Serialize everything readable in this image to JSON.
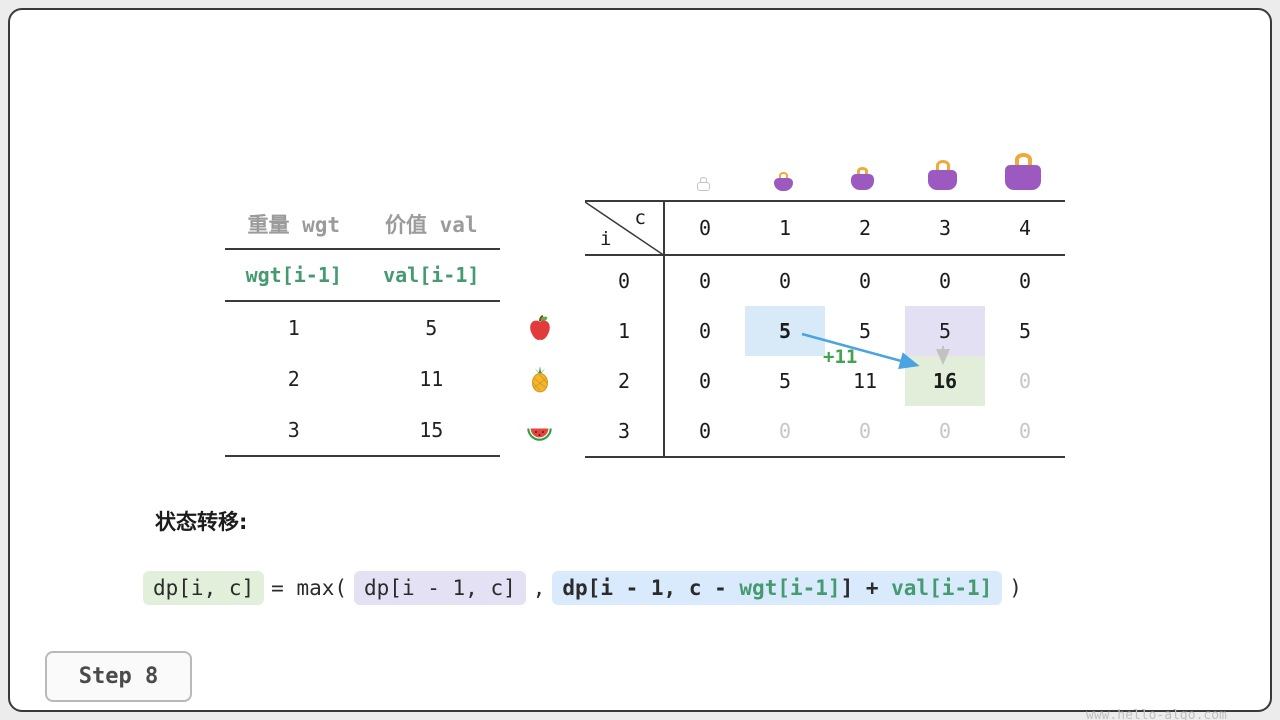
{
  "meta": {
    "step_label": "Step 8",
    "watermark": "www.hello-algo.com"
  },
  "items_table": {
    "headers": [
      "重量 wgt",
      "价值 val"
    ],
    "formula_row": [
      "wgt[i-1]",
      "val[i-1]"
    ],
    "rows": [
      {
        "wgt": "1",
        "val": "5",
        "icon": "apple-icon"
      },
      {
        "wgt": "2",
        "val": "11",
        "icon": "pineapple-icon"
      },
      {
        "wgt": "3",
        "val": "15",
        "icon": "watermelon-icon"
      }
    ]
  },
  "dp_table": {
    "corner": {
      "row_var": "i",
      "col_var": "c"
    },
    "col_headers": [
      "0",
      "1",
      "2",
      "3",
      "4"
    ],
    "bag_icons": [
      "bag-icon-capacity-0",
      "bag-icon-capacity-1",
      "bag-icon-capacity-2",
      "bag-icon-capacity-3",
      "bag-icon-capacity-4"
    ],
    "rows": [
      {
        "label": "0",
        "cells": [
          {
            "v": "0"
          },
          {
            "v": "0"
          },
          {
            "v": "0"
          },
          {
            "v": "0"
          },
          {
            "v": "0"
          }
        ]
      },
      {
        "label": "1",
        "cells": [
          {
            "v": "0"
          },
          {
            "v": "5",
            "hl": "blue",
            "bold": true
          },
          {
            "v": "5"
          },
          {
            "v": "5",
            "hl": "purple"
          },
          {
            "v": "5"
          }
        ]
      },
      {
        "label": "2",
        "cells": [
          {
            "v": "0"
          },
          {
            "v": "5"
          },
          {
            "v": "11"
          },
          {
            "v": "16",
            "hl": "green",
            "bold": true
          },
          {
            "v": "0",
            "dim": true
          }
        ]
      },
      {
        "label": "3",
        "cells": [
          {
            "v": "0"
          },
          {
            "v": "0",
            "dim": true
          },
          {
            "v": "0",
            "dim": true
          },
          {
            "v": "0",
            "dim": true
          },
          {
            "v": "0",
            "dim": true
          }
        ]
      }
    ],
    "annotation": "+11"
  },
  "transition": {
    "label": "状态转移:",
    "lhs": "dp[i, c]",
    "eq_max": "= max(",
    "arg1": "dp[i - 1, c]",
    "comma": ",",
    "arg2": {
      "p1": "dp[i - 1, c - ",
      "wgt": "wgt[i-1]",
      "p2": "] + ",
      "val": "val[i-1]"
    },
    "close": ")"
  },
  "colors": {
    "accent_teal": "#459a6f",
    "accent_green": "#3fa44e",
    "arrow_blue": "#4aa3e2",
    "hl_blue": "#d8e9f8",
    "hl_purple": "#e3e0f4",
    "hl_green": "#e2eeda",
    "chip_green": "#e2efda",
    "chip_purple": "#e4e1f5",
    "chip_blue": "#d8eafb"
  }
}
